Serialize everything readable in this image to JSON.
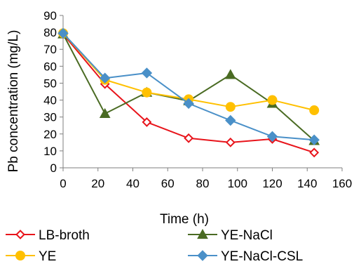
{
  "chart_data": {
    "type": "line",
    "title": "",
    "xlabel": "Time (h)",
    "ylabel": "Pb concentration (mg/L)",
    "xlim": [
      0,
      160
    ],
    "ylim": [
      0,
      90
    ],
    "xticks": [
      "0",
      "20",
      "40",
      "60",
      "80",
      "100",
      "120",
      "140",
      "160"
    ],
    "yticks": [
      "0",
      "10",
      "20",
      "30",
      "40",
      "50",
      "60",
      "70",
      "80",
      "90"
    ],
    "grid": false,
    "legend_position": "bottom",
    "series": [
      {
        "name": "LB-broth",
        "color": "#e8141b",
        "marker": "diamond-open",
        "x": [
          0,
          24,
          48,
          72,
          96,
          120,
          144
        ],
        "y": [
          79,
          49.5,
          27,
          17.5,
          15,
          17,
          9
        ]
      },
      {
        "name": "YE-NaCl",
        "color": "#4a6b23",
        "marker": "triangle",
        "x": [
          0,
          24,
          48,
          72,
          96,
          120,
          144
        ],
        "y": [
          79,
          32,
          44.5,
          39.5,
          55,
          38,
          16
        ]
      },
      {
        "name": "YE",
        "color": "#ffc000",
        "marker": "circle",
        "x": [
          0,
          24,
          48,
          72,
          96,
          120,
          144
        ],
        "y": [
          79.5,
          52,
          44.5,
          40.5,
          36,
          40,
          34
        ]
      },
      {
        "name": "YE-NaCl-CSL",
        "color": "#4a90c8",
        "marker": "diamond",
        "x": [
          0,
          24,
          48,
          72,
          96,
          120,
          144
        ],
        "y": [
          79.5,
          53,
          56,
          38,
          28,
          18.5,
          16.5
        ]
      }
    ]
  }
}
